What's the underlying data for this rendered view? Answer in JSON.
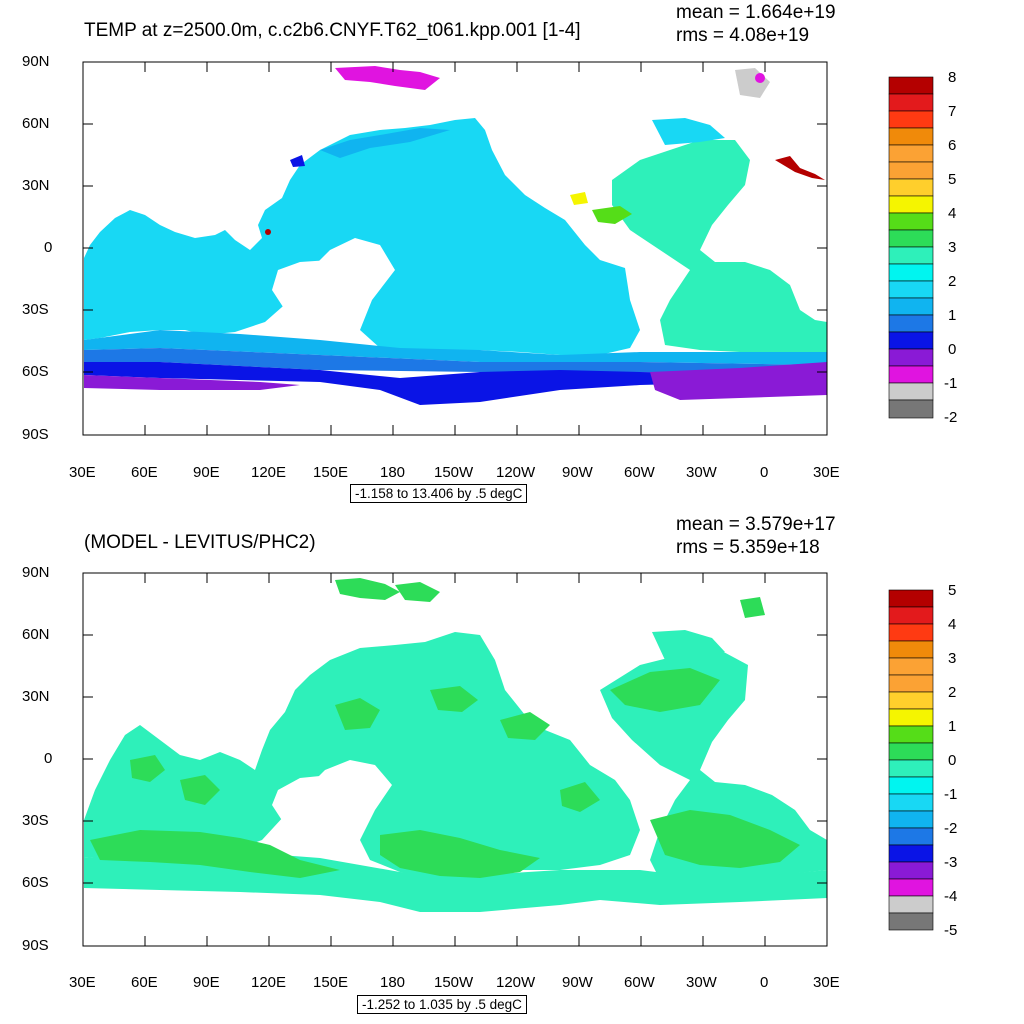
{
  "panels": [
    {
      "title": "TEMP at z=2500.0m, c.c2b6.CNYF.T62_t061.kpp.001 [1-4]",
      "mean": "mean = 1.664e+19",
      "rms": "rms = 4.08e+19",
      "range": "-1.158 to 13.406 by .5 degC",
      "lat_labels": [
        "90N",
        "60N",
        "30N",
        "0",
        "30S",
        "60S",
        "90S"
      ],
      "lon_labels": [
        "30E",
        "60E",
        "90E",
        "120E",
        "150E",
        "180",
        "150W",
        "120W",
        "90W",
        "60W",
        "30W",
        "0",
        "30E"
      ],
      "colorbar_labels": [
        "8",
        "7",
        "6",
        "5",
        "4",
        "3",
        "2",
        "1",
        "0",
        "-1",
        "-2"
      ]
    },
    {
      "title": "(MODEL - LEVITUS/PHC2)",
      "mean": "mean = 3.579e+17",
      "rms": "rms = 5.359e+18",
      "range": "-1.252 to 1.035 by .5 degC",
      "lat_labels": [
        "90N",
        "60N",
        "30N",
        "0",
        "30S",
        "60S",
        "90S"
      ],
      "lon_labels": [
        "30E",
        "60E",
        "90E",
        "120E",
        "150E",
        "180",
        "150W",
        "120W",
        "90W",
        "60W",
        "30W",
        "0",
        "30E"
      ],
      "colorbar_labels": [
        "5",
        "4",
        "3",
        "2",
        "1",
        "0",
        "-1",
        "-2",
        "-3",
        "-4",
        "-5"
      ]
    }
  ],
  "colors": {
    "dark_red": "#b40000",
    "red": "#e31a1c",
    "orange_red": "#ff3a12",
    "orange": "#f08a0a",
    "light_orange": "#fba234",
    "amber": "#ffcf2c",
    "yellow": "#f5f500",
    "lime": "#55dd18",
    "green": "#2ddc58",
    "aqua_green": "#2ef0ba",
    "cyan": "#00f5f0",
    "sky": "#18d8f4",
    "light_blue": "#10b4f0",
    "blue": "#1d78e6",
    "dark_blue": "#0a14e6",
    "purple": "#8a1ad6",
    "magenta": "#e014e0",
    "light_gray": "#cccccc",
    "gray": "#777777"
  }
}
